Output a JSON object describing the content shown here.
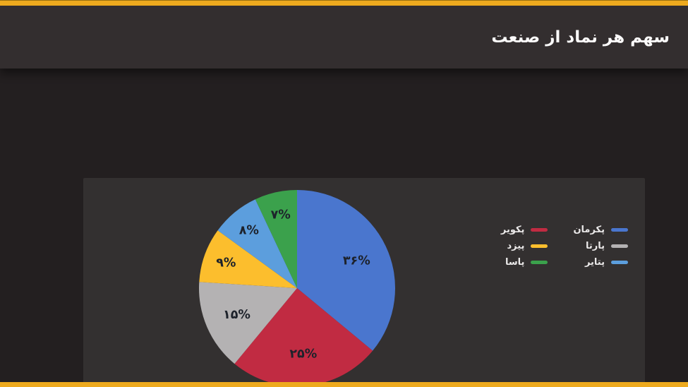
{
  "header": {
    "title": "سهم هر نماد از صنعت"
  },
  "theme": {
    "accent_strip": "#eeaa1e",
    "header_bg": "#332e2f",
    "page_bg": "#231f20",
    "panel_bg": "#333030",
    "slice_label_color": "#1d222b",
    "legend_text_color": "#ebe9e9",
    "title_color": "#fbfafa"
  },
  "chart_data": {
    "type": "pie",
    "title": "سهم هر نماد از صنعت",
    "direction": "clockwise",
    "start_angle_deg": 0,
    "legend_position": "right",
    "value_format": "percent, persian digits",
    "slices": [
      {
        "name": "پکرمان",
        "value": 36,
        "label": "۳۶%",
        "color": "#4a76ce"
      },
      {
        "name": "پکویر",
        "value": 25,
        "label": "۲۵%",
        "color": "#c12b42"
      },
      {
        "name": "پارتا",
        "value": 15,
        "label": "۱۵%",
        "color": "#b4b2b3"
      },
      {
        "name": "پیزد",
        "value": 9,
        "label": "۹%",
        "color": "#fcbe2d"
      },
      {
        "name": "پتایر",
        "value": 8,
        "label": "۸%",
        "color": "#5c9edd"
      },
      {
        "name": "پاسا",
        "value": 7,
        "label": "۷%",
        "color": "#3ba14c"
      }
    ]
  },
  "legend": {
    "columns": [
      {
        "items": [
          {
            "label": "پکرمان",
            "color": "#4a76ce"
          },
          {
            "label": "پارتا",
            "color": "#b4b2b3"
          },
          {
            "label": "پتایر",
            "color": "#5c9edd"
          }
        ]
      },
      {
        "items": [
          {
            "label": "پکویر",
            "color": "#c12b42"
          },
          {
            "label": "پیزد",
            "color": "#fcbe2d"
          },
          {
            "label": "پاسا",
            "color": "#3ba14c"
          }
        ]
      }
    ]
  }
}
